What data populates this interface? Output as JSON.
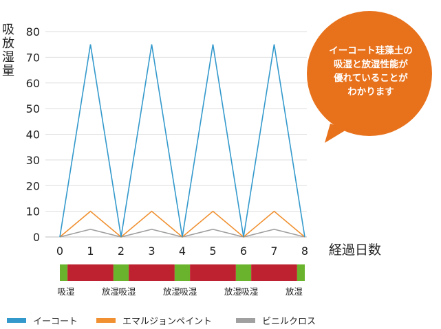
{
  "chart_data": {
    "type": "line",
    "x": [
      0,
      1,
      2,
      3,
      4,
      5,
      6,
      7,
      8
    ],
    "xlabel": "経過日数",
    "ylabel": "吸放湿量",
    "ylim": [
      0,
      80
    ],
    "yticks": [
      0,
      10,
      20,
      30,
      40,
      50,
      60,
      70,
      80
    ],
    "grid": true,
    "legend_position": "bottom",
    "series": [
      {
        "name": "イーコート",
        "color": "#3399CC",
        "values": [
          0,
          75,
          0,
          75,
          0,
          75,
          0,
          75,
          0
        ]
      },
      {
        "name": "エマルジョンペイント",
        "color": "#F09030",
        "values": [
          0,
          10,
          0,
          10,
          0,
          10,
          0,
          10,
          0
        ]
      },
      {
        "name": "ビニルクロス",
        "color": "#A0A0A0",
        "values": [
          0,
          3,
          0,
          3,
          0,
          3,
          0,
          3,
          0
        ]
      }
    ],
    "phase_bar": {
      "colors": {
        "absorb": "#6AB42D",
        "release": "#BE2230"
      },
      "segments": [
        {
          "from": 0,
          "to": 0.25,
          "kind": "absorb"
        },
        {
          "from": 0.25,
          "to": 1.75,
          "kind": "release"
        },
        {
          "from": 1.75,
          "to": 2.25,
          "kind": "absorb"
        },
        {
          "from": 2.25,
          "to": 3.75,
          "kind": "release"
        },
        {
          "from": 3.75,
          "to": 4.25,
          "kind": "absorb"
        },
        {
          "from": 4.25,
          "to": 5.75,
          "kind": "release"
        },
        {
          "from": 5.75,
          "to": 6.25,
          "kind": "absorb"
        },
        {
          "from": 6.25,
          "to": 7.75,
          "kind": "release"
        },
        {
          "from": 7.75,
          "to": 8,
          "kind": "absorb"
        }
      ],
      "labels": [
        {
          "at": 0.2,
          "text": "吸湿"
        },
        {
          "at": 1.65,
          "text": "放湿"
        },
        {
          "at": 2.2,
          "text": "吸湿"
        },
        {
          "at": 3.65,
          "text": "放湿"
        },
        {
          "at": 4.2,
          "text": "吸湿"
        },
        {
          "at": 5.65,
          "text": "放湿"
        },
        {
          "at": 6.2,
          "text": "吸湿"
        },
        {
          "at": 7.65,
          "text": "放湿"
        }
      ]
    },
    "callout": {
      "lines": [
        "イーコート珪藻土の",
        "吸湿と放湿性能が",
        "優れていることが",
        "わかります"
      ],
      "color": "#E8711B"
    }
  }
}
